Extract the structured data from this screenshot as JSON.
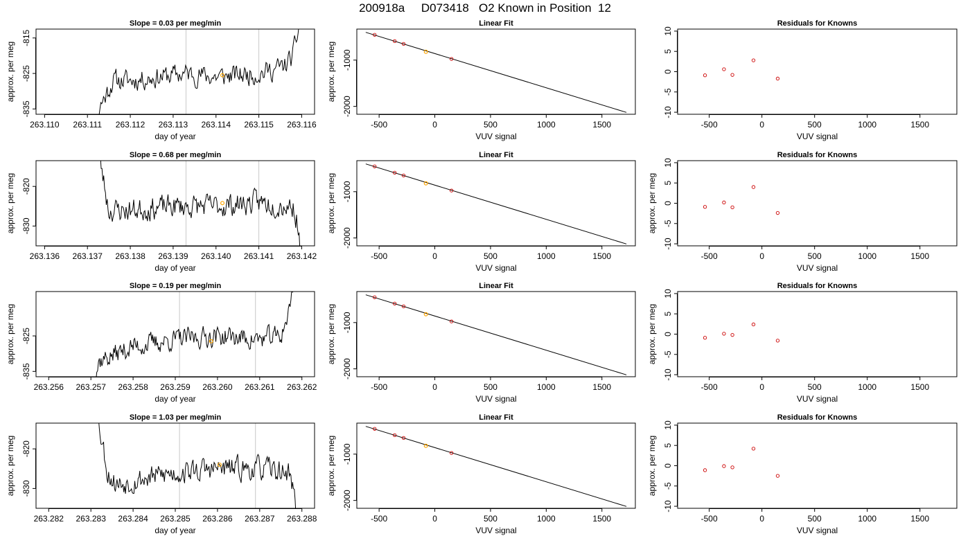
{
  "figure_title": "200918a     D073418   O2 Known in Position  12",
  "colors": {
    "trace": "#000000",
    "marker_gray": "#c8c8c8",
    "known_point": "#cc0000",
    "sample_point": "#ffa500",
    "frame": "#000000"
  },
  "chart_data": [
    {
      "type": "line",
      "title": "Slope =  0.03  per meg/min",
      "xlabel": "day of year",
      "ylabel": "approx. per meg",
      "xlim": [
        263.1098,
        263.1163
      ],
      "ylim": [
        -836.5,
        -812.5
      ],
      "xticks": [
        "263.110",
        "263.111",
        "263.112",
        "263.113",
        "263.114",
        "263.115",
        "263.116"
      ],
      "yticks": [
        "-815",
        "-825",
        "-835"
      ],
      "marker_lines": [
        263.1133,
        263.115
      ],
      "series_range": [
        263.111,
        263.116
      ],
      "series_seed": 11,
      "series_anchors": [
        [
          263.111,
          -850
        ],
        [
          263.1113,
          -834
        ],
        [
          263.1116,
          -827
        ],
        [
          263.112,
          -827
        ],
        [
          263.1133,
          -825
        ],
        [
          263.114,
          -826
        ],
        [
          263.115,
          -825
        ],
        [
          263.1156,
          -823
        ],
        [
          263.1158,
          -820
        ],
        [
          263.116,
          -808
        ]
      ],
      "orange_point": [
        263.11415,
        -825.5
      ]
    },
    {
      "type": "scatter",
      "title": "Linear Fit",
      "xlabel": "VUV signal",
      "ylabel": "approx. per meg",
      "xlim": [
        -700,
        1800
      ],
      "ylim": [
        -2170,
        -330
      ],
      "xticks": [
        "-500",
        "0",
        "500",
        "1000",
        "1500"
      ],
      "yticks": [
        "-1000",
        "-2000"
      ],
      "fit_line": [
        [
          -620,
          -400
        ],
        [
          1720,
          -2130
        ]
      ],
      "points": [
        [
          -540,
          -454
        ],
        [
          -360,
          -590
        ],
        [
          -280,
          -650
        ],
        [
          150,
          -975
        ]
      ],
      "orange_point": [
        -80,
        -820
      ]
    },
    {
      "type": "scatter",
      "title": "Residuals for Knowns",
      "xlabel": "VUV signal",
      "ylabel": "",
      "xlim": [
        -800,
        1850
      ],
      "ylim": [
        -10.5,
        10.5
      ],
      "xticks": [
        "-500",
        "0",
        "500",
        "1000",
        "1500"
      ],
      "yticks": [
        "10",
        "5",
        "0",
        "-5",
        "-10"
      ],
      "points": [
        [
          -540,
          -0.9
        ],
        [
          -360,
          0.6
        ],
        [
          -280,
          -0.8
        ],
        [
          -80,
          2.8
        ],
        [
          150,
          -1.7
        ]
      ]
    },
    {
      "type": "line",
      "title": "Slope =  0.68  per meg/min",
      "xlabel": "day of year",
      "ylabel": "approx. per meg",
      "xlim": [
        263.1358,
        263.1423
      ],
      "ylim": [
        -835,
        -813.5
      ],
      "xticks": [
        "263.136",
        "263.137",
        "263.138",
        "263.139",
        "263.140",
        "263.141",
        "263.142"
      ],
      "yticks": [
        "-820",
        "-830"
      ],
      "marker_lines": [
        263.1393,
        263.141
      ],
      "series_range": [
        263.1372,
        263.142
      ],
      "series_seed": 23,
      "series_anchors": [
        [
          263.1372,
          -808
        ],
        [
          263.1374,
          -820
        ],
        [
          263.1375,
          -826
        ],
        [
          263.138,
          -826
        ],
        [
          263.139,
          -825
        ],
        [
          263.14,
          -825
        ],
        [
          263.141,
          -824
        ],
        [
          263.1418,
          -825
        ],
        [
          263.1419,
          -829
        ],
        [
          263.142,
          -840
        ]
      ],
      "orange_point": [
        263.14015,
        -824.2
      ]
    },
    {
      "type": "scatter",
      "title": "Linear Fit",
      "xlabel": "VUV signal",
      "ylabel": "approx. per meg",
      "xlim": [
        -700,
        1800
      ],
      "ylim": [
        -2170,
        -330
      ],
      "xticks": [
        "-500",
        "0",
        "500",
        "1000",
        "1500"
      ],
      "yticks": [
        "-1000",
        "-2000"
      ],
      "fit_line": [
        [
          -620,
          -400
        ],
        [
          1720,
          -2130
        ]
      ],
      "points": [
        [
          -540,
          -454
        ],
        [
          -360,
          -590
        ],
        [
          -280,
          -650
        ],
        [
          150,
          -975
        ]
      ],
      "orange_point": [
        -80,
        -820
      ]
    },
    {
      "type": "scatter",
      "title": "Residuals for Knowns",
      "xlabel": "VUV signal",
      "ylabel": "approx. per meg",
      "xlim": [
        -800,
        1850
      ],
      "ylim": [
        -10.5,
        10.5
      ],
      "xticks": [
        "-500",
        "0",
        "500",
        "1000",
        "1500"
      ],
      "yticks": [
        "10",
        "5",
        "0",
        "-5",
        "-10"
      ],
      "points": [
        [
          -540,
          -0.9
        ],
        [
          -360,
          0.2
        ],
        [
          -280,
          -1.0
        ],
        [
          -80,
          4.0
        ],
        [
          150,
          -2.4
        ]
      ]
    },
    {
      "type": "line",
      "title": "Slope =  0.19  per meg/min",
      "xlabel": "day of year",
      "ylabel": "approx. per meg",
      "xlim": [
        263.2557,
        263.2623
      ],
      "ylim": [
        -836.5,
        -812.5
      ],
      "xticks": [
        "263.256",
        "263.257",
        "263.258",
        "263.259",
        "263.260",
        "263.261",
        "263.262"
      ],
      "yticks": [
        "-825",
        "-835"
      ],
      "marker_lines": [
        263.2591,
        263.2609
      ],
      "series_range": [
        263.257,
        263.2618
      ],
      "series_seed": 37,
      "series_anchors": [
        [
          263.257,
          -840
        ],
        [
          263.2572,
          -832
        ],
        [
          263.258,
          -828
        ],
        [
          263.259,
          -826
        ],
        [
          263.26,
          -825
        ],
        [
          263.261,
          -826
        ],
        [
          263.2615,
          -825
        ],
        [
          263.2617,
          -818
        ],
        [
          263.2618,
          -810
        ]
      ],
      "orange_point": [
        263.25985,
        -826.5
      ]
    },
    {
      "type": "scatter",
      "title": "Linear Fit",
      "xlabel": "VUV signal",
      "ylabel": "approx. per meg",
      "xlim": [
        -700,
        1800
      ],
      "ylim": [
        -2170,
        -330
      ],
      "xticks": [
        "-500",
        "0",
        "500",
        "1000",
        "1500"
      ],
      "yticks": [
        "-1000",
        "-2000"
      ],
      "fit_line": [
        [
          -620,
          -400
        ],
        [
          1720,
          -2130
        ]
      ],
      "points": [
        [
          -540,
          -454
        ],
        [
          -360,
          -590
        ],
        [
          -280,
          -650
        ],
        [
          150,
          -975
        ]
      ],
      "orange_point": [
        -80,
        -820
      ]
    },
    {
      "type": "scatter",
      "title": "Residuals for Knowns",
      "xlabel": "VUV signal",
      "ylabel": "approx. per meg",
      "xlim": [
        -800,
        1850
      ],
      "ylim": [
        -10.5,
        10.5
      ],
      "xticks": [
        "-500",
        "0",
        "500",
        "1000",
        "1500"
      ],
      "yticks": [
        "10",
        "5",
        "0",
        "-5",
        "-10"
      ],
      "points": [
        [
          -540,
          -0.9
        ],
        [
          -360,
          0.1
        ],
        [
          -280,
          -0.2
        ],
        [
          -80,
          2.4
        ],
        [
          150,
          -1.6
        ]
      ]
    },
    {
      "type": "line",
      "title": "Slope =  1.03  per meg/min",
      "xlabel": "day of year",
      "ylabel": "approx. per meg",
      "xlim": [
        263.2817,
        263.2883
      ],
      "ylim": [
        -835,
        -813.5
      ],
      "xticks": [
        "263.282",
        "263.283",
        "263.284",
        "263.285",
        "263.286",
        "263.287",
        "263.288"
      ],
      "yticks": [
        "-820",
        "-830"
      ],
      "marker_lines": [
        263.2851,
        263.2869
      ],
      "series_range": [
        263.2831,
        263.2879
      ],
      "series_seed": 53,
      "series_anchors": [
        [
          263.2831,
          -808
        ],
        [
          263.2834,
          -826
        ],
        [
          263.2836,
          -829
        ],
        [
          263.284,
          -828
        ],
        [
          263.285,
          -826
        ],
        [
          263.286,
          -825
        ],
        [
          263.287,
          -825
        ],
        [
          263.2877,
          -826
        ],
        [
          263.2878,
          -830
        ],
        [
          263.2879,
          -840
        ]
      ],
      "orange_point": [
        263.28605,
        -824
      ]
    },
    {
      "type": "scatter",
      "title": "Linear Fit",
      "xlabel": "VUV signal",
      "ylabel": "approx. per meg",
      "xlim": [
        -700,
        1800
      ],
      "ylim": [
        -2170,
        -330
      ],
      "xticks": [
        "-500",
        "0",
        "500",
        "1000",
        "1500"
      ],
      "yticks": [
        "-1000",
        "-2000"
      ],
      "fit_line": [
        [
          -620,
          -400
        ],
        [
          1720,
          -2130
        ]
      ],
      "points": [
        [
          -540,
          -454
        ],
        [
          -360,
          -590
        ],
        [
          -280,
          -650
        ],
        [
          150,
          -975
        ]
      ],
      "orange_point": [
        -80,
        -820
      ]
    },
    {
      "type": "scatter",
      "title": "Residuals for Knowns",
      "xlabel": "VUV signal",
      "ylabel": "approx. per meg",
      "xlim": [
        -800,
        1850
      ],
      "ylim": [
        -10.5,
        10.5
      ],
      "xticks": [
        "-500",
        "0",
        "500",
        "1000",
        "1500"
      ],
      "yticks": [
        "10",
        "5",
        "0",
        "-5",
        "-10"
      ],
      "points": [
        [
          -540,
          -1.1
        ],
        [
          -360,
          -0.1
        ],
        [
          -280,
          -0.4
        ],
        [
          -80,
          4.2
        ],
        [
          150,
          -2.5
        ]
      ]
    }
  ]
}
